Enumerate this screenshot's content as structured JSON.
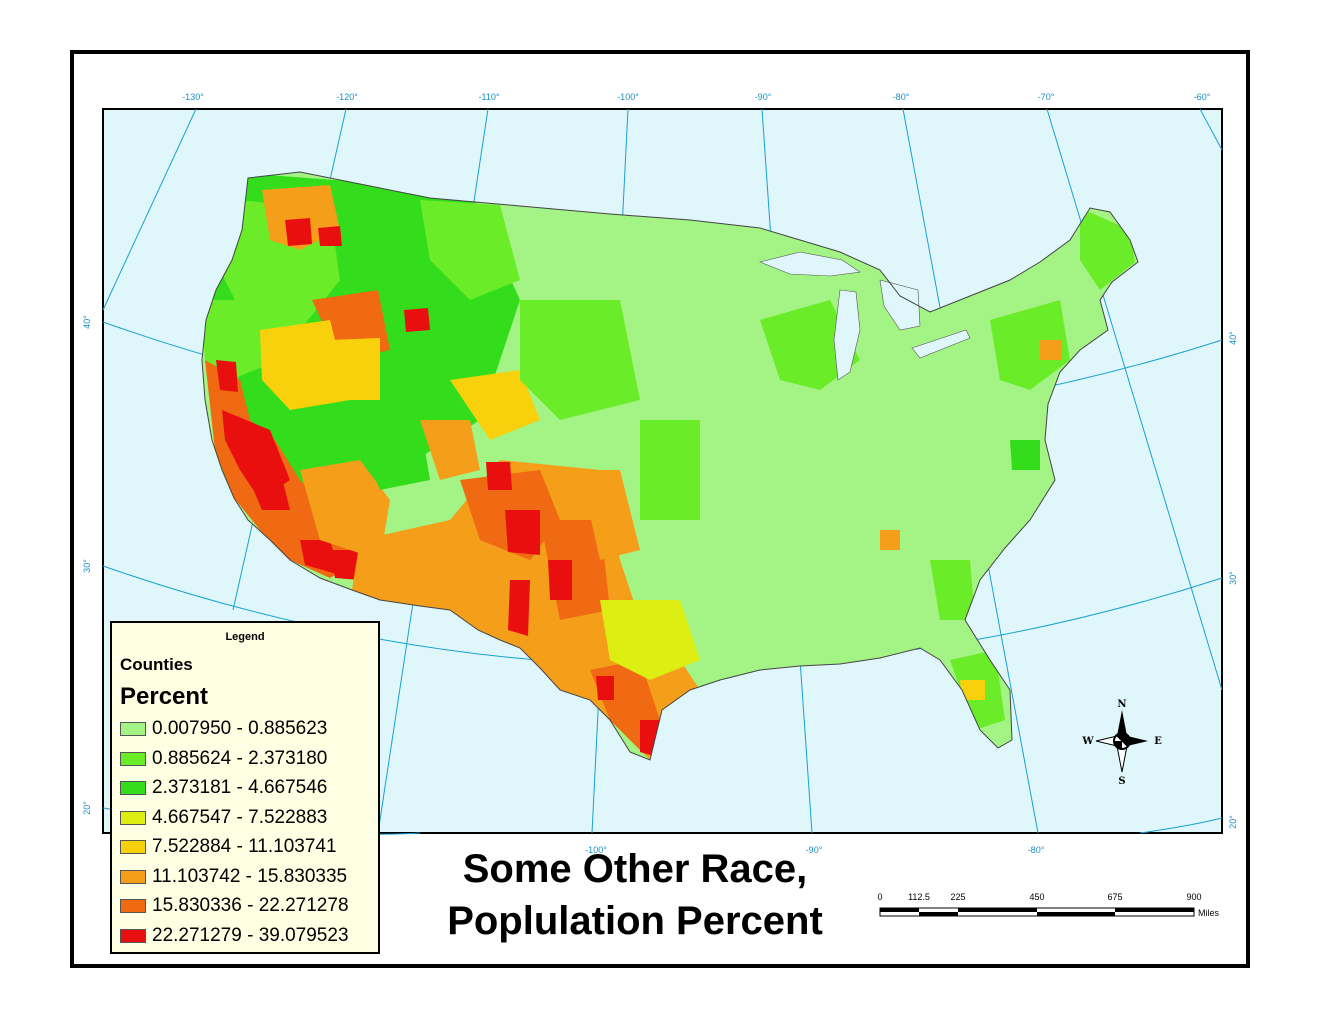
{
  "map": {
    "title_line1": "Some Other Race,",
    "title_line2": "Poplulation Percent",
    "ocean_color": "#dff7fb",
    "graticule_color": "#1aa0d2",
    "graticule_labels": {
      "longitude_top": [
        "-130°",
        "-120°",
        "-110°",
        "-100°",
        "-90°",
        "-80°",
        "-70°",
        "-60°"
      ],
      "longitude_bottom": [
        "-100°",
        "-90°",
        "-80°"
      ],
      "latitude_left": [
        "40°",
        "30°",
        "20°"
      ],
      "latitude_right": [
        "40°",
        "30°",
        "20°"
      ]
    }
  },
  "legend": {
    "title": "Legend",
    "layer": "Counties",
    "field": "Percent",
    "classes": [
      {
        "label": "0.007950 - 0.885623",
        "color": "#a4f385"
      },
      {
        "label": "0.885624 - 2.373180",
        "color": "#6bec28"
      },
      {
        "label": "2.373181 - 4.667546",
        "color": "#33dd1c"
      },
      {
        "label": "4.667547 - 7.522883",
        "color": "#ddef12"
      },
      {
        "label": "7.522884 - 11.103741",
        "color": "#f8d10c"
      },
      {
        "label": "11.103742 - 15.830335",
        "color": "#f59e1a"
      },
      {
        "label": "15.830336 - 22.271278",
        "color": "#ef6a12"
      },
      {
        "label": "22.271279 - 39.079523",
        "color": "#ea0f0f"
      }
    ]
  },
  "scale_bar": {
    "ticks": [
      "0",
      "112.5",
      "225",
      "450",
      "675",
      "900"
    ],
    "unit": "Miles"
  },
  "north_arrow": {
    "n": "N",
    "s": "S",
    "e": "E",
    "w": "W"
  }
}
